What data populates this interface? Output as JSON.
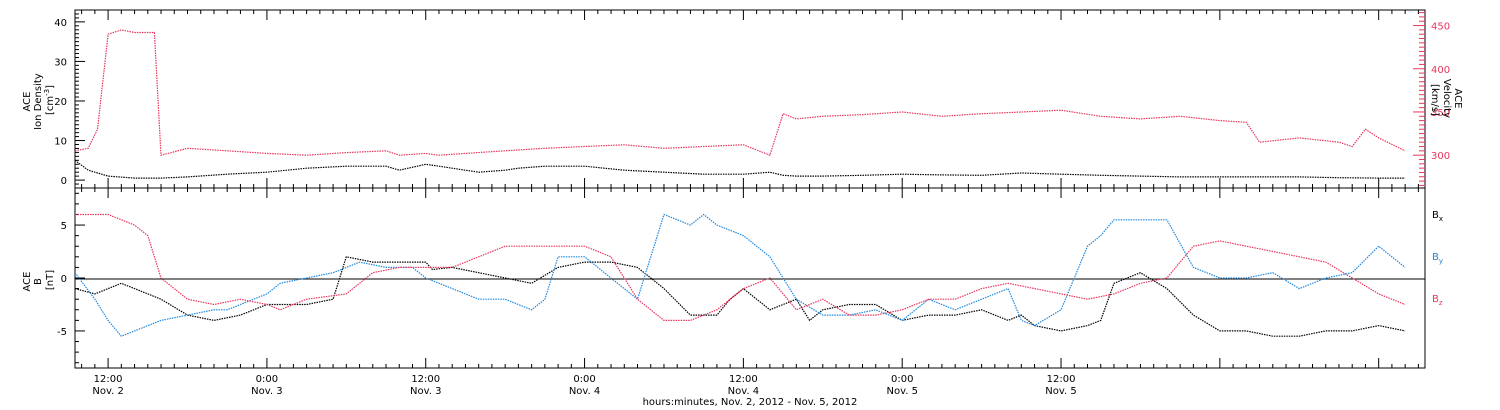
{
  "chart_data": [
    {
      "type": "scatter",
      "panel": "top",
      "ylabel_left": [
        "ACE",
        "Ion Density",
        "[cm^-3]"
      ],
      "ylabel_right": [
        "ACE",
        "Velocity",
        "[km/s]"
      ],
      "xlim_hours": [
        -14.5,
        87.5
      ],
      "ylim_left": [
        -2,
        43
      ],
      "ylim_right": [
        262,
        468
      ],
      "left_ticks": [
        0,
        10,
        20,
        30,
        40
      ],
      "right_ticks": [
        300,
        350,
        400,
        450
      ],
      "colors": {
        "density": "#000000",
        "velocity": "#e8365d"
      },
      "series": [
        {
          "key": "density",
          "axis": "left",
          "t": [
            -14.5,
            -13.5,
            -12,
            -10,
            -8,
            -6,
            -3,
            0,
            3,
            6,
            9,
            10,
            12,
            13,
            14,
            16,
            18,
            19,
            21,
            24,
            27,
            30,
            33,
            36,
            38,
            39,
            40,
            42,
            45,
            48,
            51,
            54,
            57,
            60,
            63,
            66,
            69,
            72,
            75,
            78,
            81,
            84,
            86
          ],
          "v": [
            5,
            2.5,
            1,
            0.5,
            0.5,
            0.8,
            1.5,
            2,
            3,
            3.5,
            3.5,
            2.5,
            4,
            3.5,
            3,
            2,
            2.5,
            3,
            3.5,
            3.5,
            2.5,
            2,
            1.5,
            1.5,
            2,
            1.2,
            1,
            1,
            1.2,
            1.5,
            1.3,
            1.2,
            1.8,
            1.5,
            1.2,
            1,
            0.8,
            0.8,
            0.8,
            0.8,
            0.6,
            0.5,
            0.5
          ]
        },
        {
          "key": "velocity",
          "axis": "right",
          "t": [
            -14.5,
            -13.5,
            -12.8,
            -12,
            -11,
            -10,
            -8.5,
            -8,
            -6,
            -3,
            0,
            3,
            6,
            9,
            10,
            12,
            13,
            15,
            18,
            21,
            24,
            27,
            30,
            33,
            36,
            38,
            39,
            40,
            42,
            45,
            48,
            51,
            54,
            57,
            60,
            63,
            66,
            69,
            72,
            74,
            75,
            78,
            81,
            82,
            83,
            84,
            86
          ],
          "v": [
            305,
            308,
            330,
            440,
            445,
            442,
            442,
            300,
            308,
            305,
            302,
            300,
            303,
            305,
            300,
            302,
            300,
            302,
            305,
            308,
            310,
            312,
            308,
            310,
            312,
            300,
            348,
            342,
            345,
            347,
            350,
            345,
            348,
            350,
            352,
            345,
            342,
            345,
            340,
            338,
            315,
            320,
            315,
            310,
            330,
            320,
            305
          ]
        }
      ]
    },
    {
      "type": "scatter",
      "panel": "bottom",
      "ylabel": [
        "ACE",
        "B",
        "[nT]"
      ],
      "xlim_hours": [
        -14.5,
        87.5
      ],
      "ylim": [
        -8.5,
        8.5
      ],
      "yticks": [
        -5,
        0,
        5
      ],
      "legend": [
        "Bx",
        "By",
        "Bz"
      ],
      "colors": {
        "Bx": "#000000",
        "By": "#1f88df",
        "Bz": "#e8365d"
      },
      "series": [
        {
          "key": "Bx",
          "t": [
            -14.5,
            -13,
            -11,
            -10,
            -8,
            -6,
            -4,
            -2,
            -1,
            0,
            1,
            3,
            5,
            6,
            8,
            10,
            12,
            12.5,
            14,
            16,
            18,
            20,
            22,
            24,
            26,
            28,
            30,
            32,
            34,
            35,
            36,
            38,
            40,
            41,
            42,
            44,
            46,
            48,
            50,
            52,
            54,
            56,
            57,
            58,
            60,
            62,
            63,
            64,
            66,
            68,
            70,
            72,
            74,
            76,
            78,
            80,
            82,
            84,
            86
          ],
          "v": [
            -1,
            -1.5,
            -0.5,
            -1,
            -2,
            -3.5,
            -4,
            -3.5,
            -3,
            -2.5,
            -2.5,
            -2.5,
            -2,
            2,
            1.5,
            1.5,
            1.5,
            0.8,
            1,
            0.5,
            0,
            -0.5,
            1,
            1.5,
            1.5,
            1,
            -1,
            -3.5,
            -3.5,
            -2,
            -1,
            -3,
            -2,
            -4,
            -3,
            -2.5,
            -2.5,
            -4,
            -3.5,
            -3.5,
            -3,
            -4,
            -3.5,
            -4.5,
            -5,
            -4.5,
            -4,
            -0.5,
            0.5,
            -1,
            -3.5,
            -5,
            -5,
            -5.5,
            -5.5,
            -5,
            -5,
            -4.5,
            -5
          ]
        },
        {
          "key": "By",
          "t": [
            -14.5,
            -13,
            -12,
            -11,
            -10,
            -8,
            -6,
            -4,
            -3,
            -2,
            0,
            1,
            3,
            5,
            7,
            9,
            11,
            12,
            14,
            16,
            18,
            20,
            21,
            22,
            24,
            26,
            28,
            30,
            32,
            33,
            34,
            36,
            38,
            40,
            42,
            44,
            46,
            48,
            50,
            52,
            54,
            56,
            57,
            58,
            60,
            61,
            62,
            63,
            64,
            65,
            66,
            67,
            68,
            70,
            72,
            74,
            76,
            78,
            80,
            82,
            84,
            86
          ],
          "v": [
            0.5,
            -2,
            -4,
            -5.5,
            -5,
            -4,
            -3.5,
            -3,
            -3,
            -2.5,
            -1.5,
            -0.5,
            0,
            0.5,
            1.5,
            1,
            1,
            0,
            -1,
            -2,
            -2,
            -3,
            -2,
            2,
            2,
            0,
            -2,
            6,
            5,
            6,
            5,
            4,
            2,
            -2,
            -3.5,
            -3.5,
            -3,
            -4,
            -2,
            -3,
            -2,
            -1,
            -4,
            -4.5,
            -3,
            0,
            3,
            4,
            5.5,
            5.5,
            5.5,
            5.5,
            5.5,
            1,
            0,
            0,
            0.5,
            -1,
            0,
            0.5,
            3,
            1
          ]
        },
        {
          "key": "Bz",
          "t": [
            -14.5,
            -13,
            -12,
            -10,
            -9,
            -8,
            -6,
            -4,
            -2,
            0,
            1,
            3,
            6,
            8,
            10,
            12,
            14,
            16,
            18,
            20,
            22,
            24,
            26,
            28,
            30,
            32,
            34,
            36,
            38,
            40,
            42,
            44,
            46,
            48,
            50,
            52,
            54,
            56,
            58,
            60,
            62,
            64,
            66,
            68,
            70,
            72,
            74,
            76,
            78,
            80,
            82,
            84,
            86
          ],
          "v": [
            6,
            6,
            6,
            5,
            4,
            0,
            -2,
            -2.5,
            -2,
            -2.5,
            -3,
            -2,
            -1.5,
            0.5,
            1,
            1,
            1,
            2,
            3,
            3,
            3,
            3,
            2,
            -2,
            -4,
            -4,
            -3,
            -1,
            0,
            -3,
            -2,
            -3.5,
            -3.5,
            -3,
            -2,
            -2,
            -1,
            -0.5,
            -1,
            -1.5,
            -2,
            -1.5,
            -0.5,
            0,
            3,
            3.5,
            3,
            2.5,
            2,
            1.5,
            0,
            -1.5,
            -2.5
          ]
        }
      ]
    }
  ],
  "labels": {
    "top_left": [
      "ACE",
      "Ion Density",
      "[cm",
      "-3",
      "]"
    ],
    "top_right": [
      "ACE",
      "Velocity",
      "[km/s]"
    ],
    "bottom_left": [
      "ACE",
      "B",
      "[nT]"
    ],
    "legend": [
      {
        "main": "B",
        "sub": "x",
        "color": "#000000"
      },
      {
        "main": "B",
        "sub": "y",
        "color": "#1f88df"
      },
      {
        "main": "B",
        "sub": "z",
        "color": "#e8365d"
      }
    ],
    "xticks": [
      {
        "h": -12,
        "time": "12:00",
        "day": "Nov. 2"
      },
      {
        "h": 0,
        "time": "0:00",
        "day": "Nov. 3"
      },
      {
        "h": 12,
        "time": "12:00",
        "day": "Nov. 3"
      },
      {
        "h": 24,
        "time": "0:00",
        "day": "Nov. 4"
      },
      {
        "h": 36,
        "time": "12:00",
        "day": "Nov. 4"
      },
      {
        "h": 48,
        "time": "0:00",
        "day": "Nov. 5"
      },
      {
        "h": 60,
        "time": "12:00",
        "day": "Nov. 5"
      }
    ],
    "xlabel": "hours:minutes, Nov. 2, 2012 - Nov. 5, 2012"
  }
}
